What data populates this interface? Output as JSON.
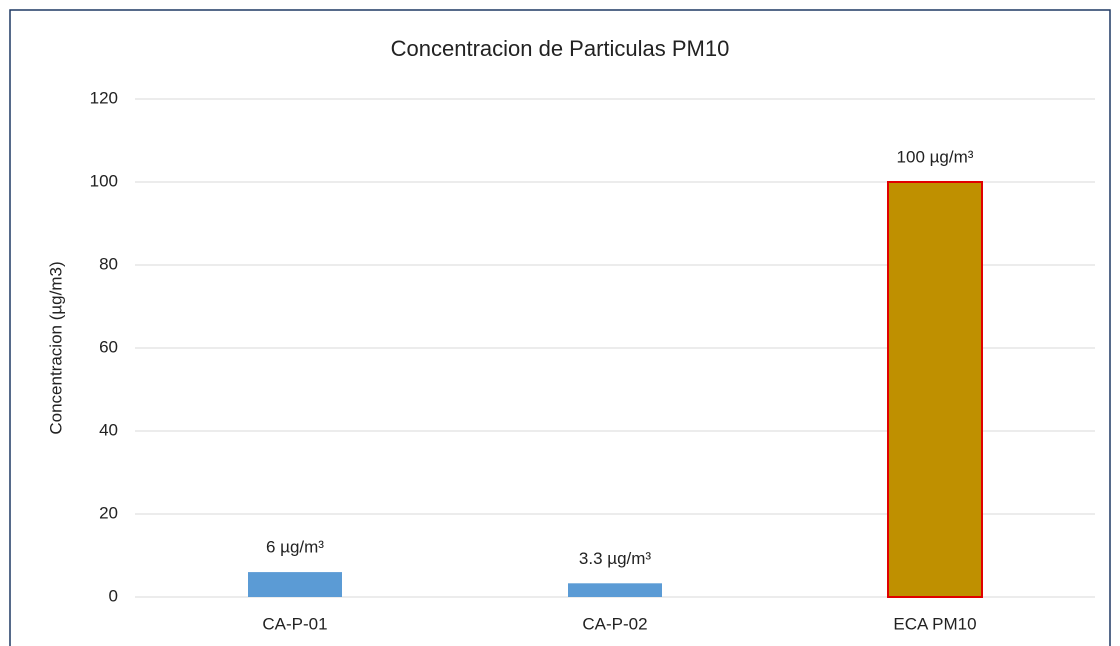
{
  "chart_data": {
    "type": "bar",
    "title": "Concentracion de Particulas PM10",
    "ylabel": "Concentracion (µg/m3)",
    "categories": [
      "CA-P-01",
      "CA-P-02",
      "ECA PM10"
    ],
    "values": [
      6,
      3.3,
      100
    ],
    "value_labels": [
      "6 µg/m³",
      "3.3 µg/m³",
      "100 µg/m³"
    ],
    "colors": [
      "#5b9bd5",
      "#5b9bd5",
      "#bf9000"
    ],
    "edgecolors": [
      null,
      null,
      "#e00000"
    ],
    "ylim": [
      0,
      120
    ],
    "yticks": [
      0,
      20,
      40,
      60,
      80,
      100,
      120
    ],
    "grid": true
  }
}
